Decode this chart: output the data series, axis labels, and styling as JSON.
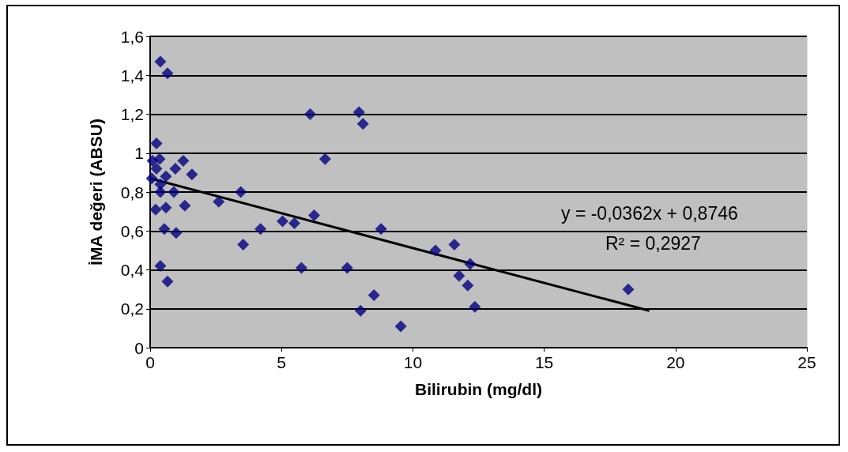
{
  "chart_data": {
    "type": "scatter",
    "xlabel": "Bilirubin (mg/dl)",
    "ylabel": "İMA değeri (ABSU)",
    "series": [
      {
        "color": "#000080",
        "marker": "diamond",
        "x": [
          0.39,
          0.66,
          0.24,
          0.09,
          0.36,
          0.24,
          1.26,
          0.96,
          1.59,
          0.06,
          0.6,
          0.39,
          0.9,
          0.39,
          3.45,
          2.61,
          0.21,
          0.6,
          1.32,
          0.54,
          0.99,
          3.54,
          0.39,
          0.66,
          6.09,
          7.95,
          8.1,
          6.66,
          6.24,
          5.04,
          5.49,
          4.2,
          8.79,
          5.76,
          7.5,
          8.52,
          8.01,
          9.54,
          10.86,
          11.58,
          12.18,
          11.76,
          12.09,
          12.36,
          18.2
        ],
        "values": [
          1.47,
          1.41,
          1.05,
          0.96,
          0.97,
          0.92,
          0.96,
          0.92,
          0.89,
          0.87,
          0.88,
          0.84,
          0.8,
          0.8,
          0.8,
          0.75,
          0.71,
          0.72,
          0.73,
          0.61,
          0.59,
          0.53,
          0.42,
          0.34,
          1.2,
          1.21,
          1.15,
          0.97,
          0.68,
          0.65,
          0.64,
          0.61,
          0.61,
          0.41,
          0.41,
          0.27,
          0.19,
          0.11,
          0.5,
          0.53,
          0.43,
          0.37,
          0.32,
          0.21,
          0.3
        ]
      },
      {
        "type": "line",
        "color": "#000000",
        "marker": "none",
        "x": [
          0,
          19
        ],
        "values": [
          0.87,
          0.19
        ]
      }
    ],
    "xlim": [
      0,
      25
    ],
    "xticks": [
      0,
      5,
      10,
      15,
      20,
      25
    ],
    "ylim": [
      0,
      1.6
    ],
    "yticks": [
      {
        "value": 0,
        "label": "0"
      },
      {
        "value": 0.2,
        "label": "0,2"
      },
      {
        "value": 0.4,
        "label": "0,4"
      },
      {
        "value": 0.6,
        "label": "0,6"
      },
      {
        "value": 0.8,
        "label": "0,8"
      },
      {
        "value": 1,
        "label": "1"
      },
      {
        "value": 1.2,
        "label": "1,2"
      },
      {
        "value": 1.4,
        "label": "1,4"
      },
      {
        "value": 1.6,
        "label": "1,6"
      }
    ],
    "grid": "y",
    "annotations": [
      "y = -0,0362x + 0,8746",
      "R² = 0,2927"
    ]
  }
}
